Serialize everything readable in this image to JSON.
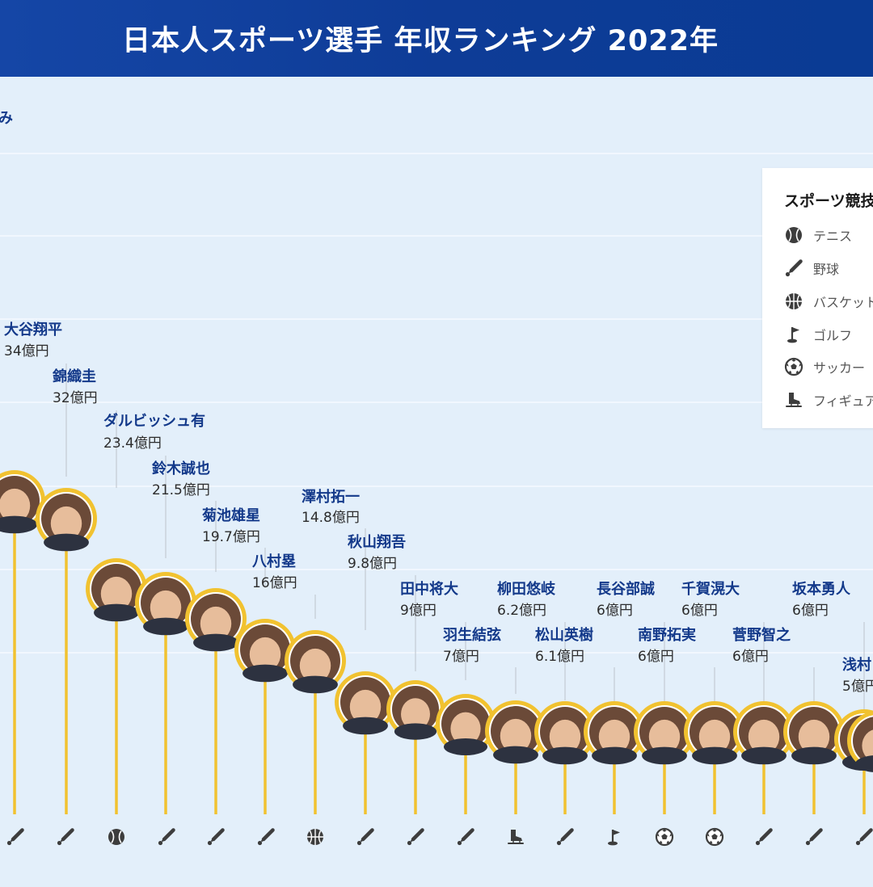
{
  "header": {
    "title": "日本人スポーツ選手 年収ランキング 2022年"
  },
  "chart_data": {
    "type": "lollipop",
    "title": "日本人スポーツ選手 年収ランキング 2022年",
    "value_unit": "億円",
    "top_label_partial": "み",
    "legend": {
      "title": "スポーツ競技",
      "items": [
        {
          "key": "tennis",
          "label": "テニス",
          "icon": "tennis-ball-icon"
        },
        {
          "key": "baseball",
          "label": "野球",
          "icon": "baseball-bat-icon"
        },
        {
          "key": "basketball",
          "label": "バスケット",
          "icon": "basketball-icon"
        },
        {
          "key": "golf",
          "label": "ゴルフ",
          "icon": "golf-flag-icon"
        },
        {
          "key": "soccer",
          "label": "サッカー",
          "icon": "soccer-ball-icon"
        },
        {
          "key": "skating",
          "label": "フィギュア",
          "icon": "skate-icon"
        }
      ]
    },
    "athletes": [
      {
        "name": "",
        "value": null,
        "value_label": "",
        "sport": "baseball",
        "partial": true
      },
      {
        "name": "",
        "value": null,
        "value_label": "",
        "sport": "baseball",
        "partial": true
      },
      {
        "name": "大谷翔平",
        "value": 34,
        "value_label": "34億円",
        "sport": "baseball"
      },
      {
        "name": "錦織圭",
        "value": 32,
        "value_label": "32億円",
        "sport": "tennis"
      },
      {
        "name": "ダルビッシュ有",
        "value": 23.4,
        "value_label": "23.4億円",
        "sport": "baseball"
      },
      {
        "name": "鈴木誠也",
        "value": 21.5,
        "value_label": "21.5億円",
        "sport": "baseball"
      },
      {
        "name": "菊池雄星",
        "value": 19.7,
        "value_label": "19.7億円",
        "sport": "baseball"
      },
      {
        "name": "八村塁",
        "value": 16,
        "value_label": "16億円",
        "sport": "basketball"
      },
      {
        "name": "澤村拓一",
        "value": 14.8,
        "value_label": "14.8億円",
        "sport": "baseball"
      },
      {
        "name": "秋山翔吾",
        "value": 9.8,
        "value_label": "9.8億円",
        "sport": "baseball"
      },
      {
        "name": "田中将大",
        "value": 9,
        "value_label": "9億円",
        "sport": "baseball"
      },
      {
        "name": "羽生結弦",
        "value": 7,
        "value_label": "7億円",
        "sport": "skating"
      },
      {
        "name": "柳田悠岐",
        "value": 6.2,
        "value_label": "6.2億円",
        "sport": "baseball"
      },
      {
        "name": "松山英樹",
        "value": 6.1,
        "value_label": "6.1億円",
        "sport": "golf"
      },
      {
        "name": "長谷部誠",
        "value": 6,
        "value_label": "6億円",
        "sport": "soccer"
      },
      {
        "name": "南野拓実",
        "value": 6,
        "value_label": "6億円",
        "sport": "soccer"
      },
      {
        "name": "千賀滉大",
        "value": 6,
        "value_label": "6億円",
        "sport": "baseball"
      },
      {
        "name": "菅野智之",
        "value": 6,
        "value_label": "6億円",
        "sport": "baseball"
      },
      {
        "name": "坂本勇人",
        "value": 6,
        "value_label": "6億円",
        "sport": "baseball"
      },
      {
        "name": "浅村",
        "value": 5,
        "value_label": "5億円",
        "sport": "baseball",
        "partial": true
      }
    ],
    "grid": true
  },
  "colors": {
    "stem": "#f1c230",
    "name_text": "#13398a",
    "icon": "#3d3d3d",
    "ring": "#f1c230"
  }
}
